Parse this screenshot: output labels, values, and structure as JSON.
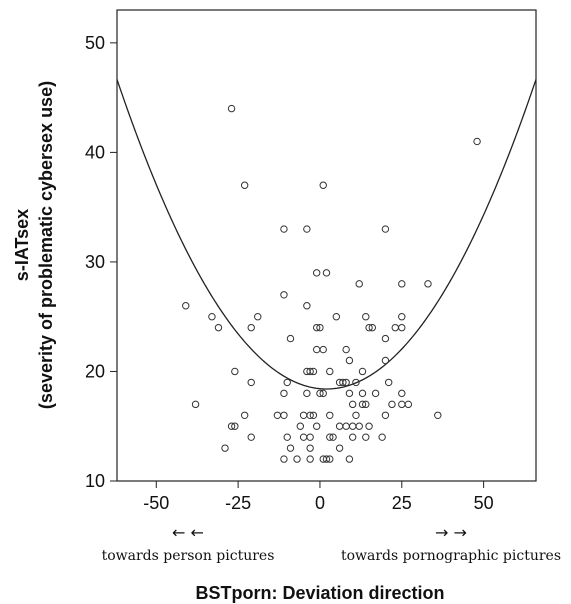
{
  "chart_data": {
    "type": "scatter",
    "title": "",
    "xlabel": "BSTporn: Deviation direction",
    "ylabel_lines": [
      "s-IATsex",
      "(severity of problematic cybersex use)"
    ],
    "xlim": [
      -62,
      66
    ],
    "ylim": [
      10,
      53
    ],
    "x_ticks": [
      -50,
      -25,
      0,
      25,
      50
    ],
    "x_tick_labels": [
      "-50",
      "-25",
      "0",
      "25",
      "50"
    ],
    "y_ticks": [
      10,
      20,
      30,
      40,
      50
    ],
    "y_tick_labels": [
      "10",
      "20",
      "30",
      "40",
      "50"
    ],
    "grid": false,
    "annotations": {
      "left_arrows": "← ←",
      "left_text": "towards person pictures",
      "right_arrows": "→ →",
      "right_text": "towards pornographic pictures"
    },
    "fit": {
      "type": "quadratic",
      "a": 0.0069,
      "vertex_x": 2,
      "vertex_y": 18.4,
      "x_range": [
        -62,
        66
      ]
    },
    "points": [
      {
        "x": -27,
        "y": 44
      },
      {
        "x": -23,
        "y": 37
      },
      {
        "x": 1,
        "y": 37
      },
      {
        "x": 48,
        "y": 41
      },
      {
        "x": -11,
        "y": 33
      },
      {
        "x": -4,
        "y": 33
      },
      {
        "x": 20,
        "y": 33
      },
      {
        "x": -1,
        "y": 29
      },
      {
        "x": 2,
        "y": 29
      },
      {
        "x": 12,
        "y": 28
      },
      {
        "x": 25,
        "y": 28
      },
      {
        "x": 33,
        "y": 28
      },
      {
        "x": -11,
        "y": 27
      },
      {
        "x": -41,
        "y": 26
      },
      {
        "x": -4,
        "y": 26
      },
      {
        "x": -33,
        "y": 25
      },
      {
        "x": -19,
        "y": 25
      },
      {
        "x": 5,
        "y": 25
      },
      {
        "x": 14,
        "y": 25
      },
      {
        "x": 25,
        "y": 25
      },
      {
        "x": -31,
        "y": 24
      },
      {
        "x": -21,
        "y": 24
      },
      {
        "x": -1,
        "y": 24
      },
      {
        "x": 0,
        "y": 24
      },
      {
        "x": 15,
        "y": 24
      },
      {
        "x": 16,
        "y": 24
      },
      {
        "x": 23,
        "y": 24
      },
      {
        "x": 25,
        "y": 24
      },
      {
        "x": -9,
        "y": 23
      },
      {
        "x": 20,
        "y": 23
      },
      {
        "x": -1,
        "y": 22
      },
      {
        "x": 1,
        "y": 22
      },
      {
        "x": 8,
        "y": 22
      },
      {
        "x": 9,
        "y": 21
      },
      {
        "x": 20,
        "y": 21
      },
      {
        "x": -4,
        "y": 20
      },
      {
        "x": -3,
        "y": 20
      },
      {
        "x": -2,
        "y": 20
      },
      {
        "x": 3,
        "y": 20
      },
      {
        "x": 13,
        "y": 20
      },
      {
        "x": -26,
        "y": 20
      },
      {
        "x": -21,
        "y": 19
      },
      {
        "x": -10,
        "y": 19
      },
      {
        "x": 6,
        "y": 19
      },
      {
        "x": 7,
        "y": 19
      },
      {
        "x": 8,
        "y": 19
      },
      {
        "x": 11,
        "y": 19
      },
      {
        "x": 21,
        "y": 19
      },
      {
        "x": -11,
        "y": 18
      },
      {
        "x": -4,
        "y": 18
      },
      {
        "x": 0,
        "y": 18
      },
      {
        "x": 1,
        "y": 18
      },
      {
        "x": 9,
        "y": 18
      },
      {
        "x": 13,
        "y": 18
      },
      {
        "x": 17,
        "y": 18
      },
      {
        "x": 25,
        "y": 18
      },
      {
        "x": -38,
        "y": 17
      },
      {
        "x": 10,
        "y": 17
      },
      {
        "x": 13,
        "y": 17
      },
      {
        "x": 14,
        "y": 17
      },
      {
        "x": 22,
        "y": 17
      },
      {
        "x": 25,
        "y": 17
      },
      {
        "x": 27,
        "y": 17
      },
      {
        "x": -23,
        "y": 16
      },
      {
        "x": -13,
        "y": 16
      },
      {
        "x": -11,
        "y": 16
      },
      {
        "x": -5,
        "y": 16
      },
      {
        "x": -3,
        "y": 16
      },
      {
        "x": -2,
        "y": 16
      },
      {
        "x": 3,
        "y": 16
      },
      {
        "x": 11,
        "y": 16
      },
      {
        "x": 20,
        "y": 16
      },
      {
        "x": 36,
        "y": 16
      },
      {
        "x": -26,
        "y": 15
      },
      {
        "x": -27,
        "y": 15
      },
      {
        "x": -6,
        "y": 15
      },
      {
        "x": -1,
        "y": 15
      },
      {
        "x": 6,
        "y": 15
      },
      {
        "x": 8,
        "y": 15
      },
      {
        "x": 10,
        "y": 15
      },
      {
        "x": 12,
        "y": 15
      },
      {
        "x": 15,
        "y": 15
      },
      {
        "x": -21,
        "y": 14
      },
      {
        "x": -10,
        "y": 14
      },
      {
        "x": -5,
        "y": 14
      },
      {
        "x": -3,
        "y": 14
      },
      {
        "x": 3,
        "y": 14
      },
      {
        "x": 4,
        "y": 14
      },
      {
        "x": 10,
        "y": 14
      },
      {
        "x": 14,
        "y": 14
      },
      {
        "x": 19,
        "y": 14
      },
      {
        "x": -29,
        "y": 13
      },
      {
        "x": -9,
        "y": 13
      },
      {
        "x": -3,
        "y": 13
      },
      {
        "x": 6,
        "y": 13
      },
      {
        "x": -11,
        "y": 12
      },
      {
        "x": -7,
        "y": 12
      },
      {
        "x": -3,
        "y": 12
      },
      {
        "x": 1,
        "y": 12
      },
      {
        "x": 2,
        "y": 12
      },
      {
        "x": 3,
        "y": 12
      },
      {
        "x": 9,
        "y": 12
      }
    ]
  }
}
